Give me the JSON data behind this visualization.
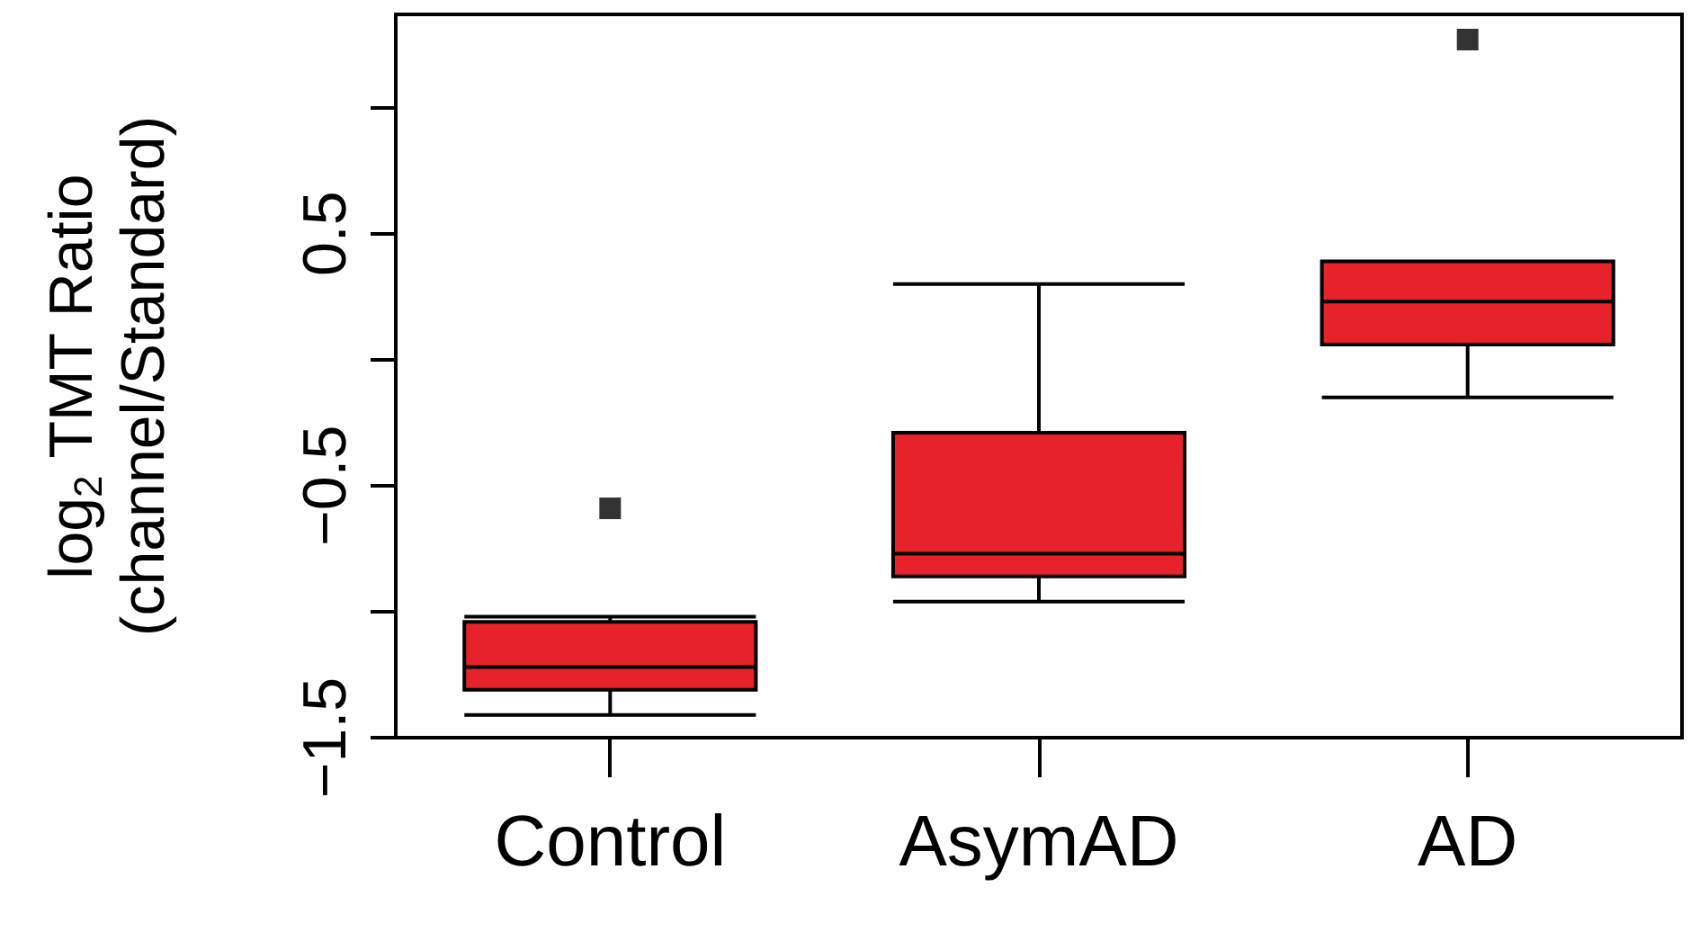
{
  "chart_data": {
    "type": "box",
    "ylabel": "log$_{2}$ TMT Ratio\n(channel/Standard)",
    "categories": [
      "Control",
      "AsymAD",
      "AD"
    ],
    "color": "#e8222a",
    "boxes": [
      {
        "low": -1.41,
        "q1": -1.31,
        "median": -1.22,
        "q3": -1.04,
        "high": -1.02,
        "outliers": [
          -0.59
        ]
      },
      {
        "low": -0.96,
        "q1": -0.86,
        "median": -0.77,
        "q3": -0.29,
        "high": 0.3
      },
      {
        "low": -0.15,
        "q1": 0.06,
        "median": 0.23,
        "q3": 0.39,
        "high": 0.39,
        "outliers": [
          1.27
        ]
      }
    ],
    "ylim": [
      -1.5,
      1.37
    ],
    "yticks": [
      -1.5,
      {
        "value": -1,
        "label": null
      },
      -0.5,
      {
        "value": 0,
        "label": null
      },
      0.5,
      {
        "value": 1,
        "label": null
      }
    ],
    "grid": false,
    "marker": "square"
  }
}
